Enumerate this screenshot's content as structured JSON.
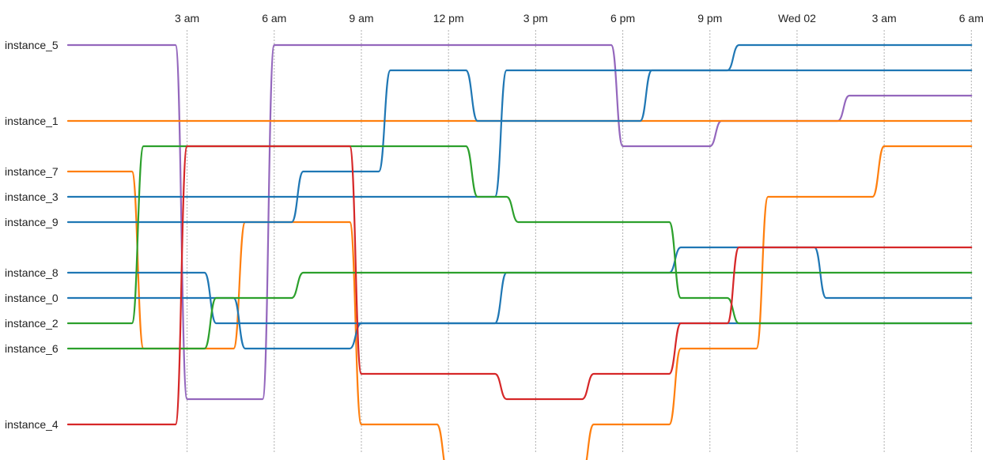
{
  "chart_data": {
    "type": "line",
    "subtype": "ranked-bump-timeline",
    "title": "",
    "xlabel": "",
    "ylabel": "",
    "x_ticks": [
      "3 am",
      "6 am",
      "9 am",
      "12 pm",
      "3 pm",
      "6 pm",
      "9 pm",
      "Wed 02",
      "3 am",
      "6 am"
    ],
    "x_tick_hours": [
      3,
      6,
      9,
      12,
      15,
      18,
      21,
      24,
      27,
      30
    ],
    "xlim_hours": [
      -1.1,
      30.1
    ],
    "rank_count": 17,
    "grid": "vertical-dashed",
    "series": [
      {
        "name": "instance_5",
        "color": "#9467bd",
        "points": [
          [
            -1.1,
            0
          ],
          [
            2.6,
            0
          ],
          [
            3.0,
            14
          ],
          [
            5.6,
            14
          ],
          [
            6.0,
            0
          ],
          [
            17.6,
            0
          ],
          [
            18.0,
            4
          ],
          [
            21.0,
            4
          ],
          [
            21.4,
            3
          ],
          [
            25.4,
            3
          ],
          [
            25.8,
            2
          ],
          [
            30.0,
            2
          ]
        ]
      },
      {
        "name": "instance_1",
        "color": "#ff7f0e",
        "points": [
          [
            -1.1,
            3
          ],
          [
            30.0,
            3
          ]
        ]
      },
      {
        "name": "instance_7",
        "color": "#ff7f0e",
        "points": [
          [
            -1.1,
            5
          ],
          [
            1.1,
            5
          ],
          [
            1.5,
            12
          ],
          [
            4.6,
            12
          ],
          [
            5.0,
            7
          ],
          [
            8.6,
            7
          ],
          [
            9.0,
            15
          ],
          [
            11.6,
            15
          ],
          [
            12.0,
            17
          ],
          [
            16.6,
            17
          ],
          [
            17.0,
            15
          ],
          [
            19.6,
            15
          ],
          [
            20.0,
            12
          ],
          [
            22.6,
            12
          ],
          [
            23.0,
            6
          ],
          [
            26.6,
            6
          ],
          [
            27.0,
            4
          ],
          [
            30.0,
            4
          ]
        ]
      },
      {
        "name": "instance_3",
        "color": "#1f77b4",
        "points": [
          [
            -1.1,
            6
          ],
          [
            13.6,
            6
          ],
          [
            14.0,
            1
          ],
          [
            30.0,
            1
          ]
        ]
      },
      {
        "name": "instance_9",
        "color": "#1f77b4",
        "points": [
          [
            -1.1,
            7
          ],
          [
            6.6,
            7
          ],
          [
            7.0,
            5
          ],
          [
            9.6,
            5
          ],
          [
            10.0,
            1
          ],
          [
            12.6,
            1
          ],
          [
            13.0,
            3
          ],
          [
            18.6,
            3
          ],
          [
            19.0,
            1
          ],
          [
            21.6,
            1
          ],
          [
            22.0,
            0
          ],
          [
            26.6,
            0
          ],
          [
            27.0,
            0
          ],
          [
            30.0,
            0
          ]
        ]
      },
      {
        "name": "instance_8",
        "color": "#1f77b4",
        "points": [
          [
            -1.1,
            9
          ],
          [
            3.6,
            9
          ],
          [
            4.0,
            11
          ],
          [
            30.0,
            11
          ]
        ]
      },
      {
        "name": "instance_0",
        "color": "#1f77b4",
        "points": [
          [
            -1.1,
            10
          ],
          [
            4.6,
            10
          ],
          [
            5.0,
            12
          ],
          [
            8.6,
            12
          ],
          [
            9.0,
            11
          ],
          [
            13.6,
            11
          ],
          [
            14.0,
            9
          ],
          [
            19.6,
            9
          ],
          [
            20.0,
            8
          ],
          [
            24.6,
            8
          ],
          [
            25.0,
            10
          ],
          [
            30.0,
            10
          ]
        ]
      },
      {
        "name": "instance_2",
        "color": "#2ca02c",
        "points": [
          [
            -1.1,
            11
          ],
          [
            1.1,
            11
          ],
          [
            1.5,
            4
          ],
          [
            12.6,
            4
          ],
          [
            13.0,
            6
          ],
          [
            14.0,
            6
          ],
          [
            14.4,
            7
          ],
          [
            19.6,
            7
          ],
          [
            20.0,
            10
          ],
          [
            21.6,
            10
          ],
          [
            22.0,
            11
          ],
          [
            30.0,
            11
          ]
        ]
      },
      {
        "name": "instance_6",
        "color": "#2ca02c",
        "points": [
          [
            -1.1,
            12
          ],
          [
            3.6,
            12
          ],
          [
            4.0,
            10
          ],
          [
            6.6,
            10
          ],
          [
            7.0,
            9
          ],
          [
            30.0,
            9
          ]
        ]
      },
      {
        "name": "instance_4",
        "color": "#d62728",
        "points": [
          [
            -1.1,
            15
          ],
          [
            2.6,
            15
          ],
          [
            3.0,
            4
          ],
          [
            8.6,
            4
          ],
          [
            9.0,
            13
          ],
          [
            13.6,
            13
          ],
          [
            14.0,
            14
          ],
          [
            16.6,
            14
          ],
          [
            17.0,
            13
          ],
          [
            19.6,
            13
          ],
          [
            20.0,
            11
          ],
          [
            21.6,
            11
          ],
          [
            22.0,
            8
          ],
          [
            30.0,
            8
          ]
        ]
      }
    ]
  }
}
